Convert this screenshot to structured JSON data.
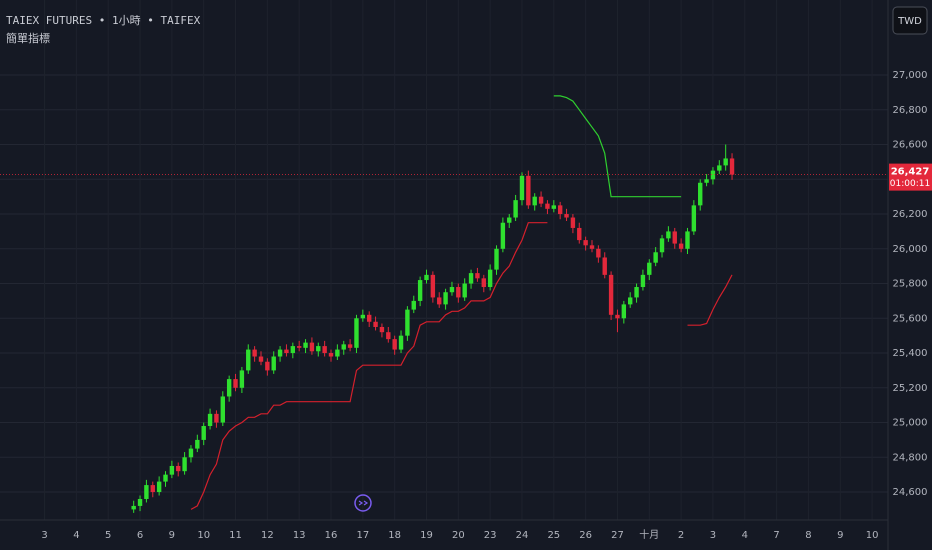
{
  "chart_data": {
    "type": "candlestick",
    "title": "TAIEX FUTURES • 1小時 • TAIFEX",
    "subtitle": "簡單指標",
    "currency": "TWD",
    "last_price": 26427,
    "last_label": "26,427",
    "countdown": "01:00:11",
    "up_color": "#2fe02f",
    "down_color": "#e3283b",
    "bg": "#151924",
    "grid": true,
    "open": [
      24500,
      24520,
      24560,
      24640,
      24600,
      24660,
      24700,
      24750,
      24720,
      24800,
      24850,
      24900,
      24980,
      25050,
      25000,
      25150,
      25250,
      25200,
      25300,
      25420,
      25380,
      25350,
      25300,
      25380,
      25420,
      25400,
      25440,
      25430,
      25460,
      25410,
      25440,
      25400,
      25380,
      25420,
      25450,
      25430,
      25600,
      25620,
      25580,
      25550,
      25520,
      25480,
      25420,
      25500,
      25650,
      25700,
      25820,
      25850,
      25720,
      25680,
      25750,
      25780,
      25720,
      25800,
      25860,
      25830,
      25780,
      25880,
      26000,
      26150,
      26180,
      26280,
      26420,
      26250,
      26300,
      26260,
      26230,
      26250,
      26200,
      26180,
      26120,
      26050,
      26020,
      26000,
      25950,
      25850,
      25620,
      25600,
      25680,
      25720,
      25780,
      25850,
      25920,
      25980,
      26060,
      26100,
      26030,
      26000,
      26100,
      26250,
      26380,
      26400,
      26450,
      26480,
      26520
    ],
    "high": [
      24550,
      24580,
      24670,
      24660,
      24690,
      24720,
      24780,
      24770,
      24830,
      24870,
      24930,
      25000,
      25080,
      25070,
      25180,
      25270,
      25280,
      25320,
      25450,
      25440,
      25410,
      25370,
      25410,
      25440,
      25450,
      25460,
      25470,
      25480,
      25490,
      25460,
      25470,
      25420,
      25450,
      25470,
      25480,
      25620,
      25650,
      25640,
      25610,
      25570,
      25550,
      25500,
      25530,
      25670,
      25730,
      25840,
      25880,
      25870,
      25750,
      25770,
      25810,
      25800,
      25830,
      25880,
      25890,
      25850,
      25910,
      26020,
      26180,
      26200,
      26310,
      26440,
      26450,
      26320,
      26330,
      26280,
      26280,
      26270,
      26230,
      26200,
      26150,
      26070,
      26050,
      26020,
      25980,
      25870,
      25650,
      25700,
      25750,
      25800,
      25880,
      25940,
      26010,
      26080,
      26130,
      26120,
      26060,
      26120,
      26280,
      26400,
      26430,
      26470,
      26510,
      26600,
      26550
    ],
    "low": [
      24480,
      24490,
      24540,
      24570,
      24580,
      24630,
      24680,
      24690,
      24700,
      24770,
      24830,
      24870,
      24960,
      24970,
      24980,
      25120,
      25180,
      25170,
      25280,
      25350,
      25330,
      25270,
      25280,
      25350,
      25380,
      25370,
      25410,
      25400,
      25390,
      25380,
      25380,
      25350,
      25360,
      25390,
      25410,
      25400,
      25580,
      25550,
      25530,
      25490,
      25460,
      25390,
      25400,
      25470,
      25630,
      25670,
      25800,
      25690,
      25660,
      25650,
      25730,
      25690,
      25700,
      25770,
      25810,
      25750,
      25760,
      25850,
      25980,
      26120,
      26160,
      26250,
      26230,
      26220,
      26240,
      26200,
      26210,
      26170,
      26160,
      26090,
      26030,
      25990,
      25980,
      25920,
      25830,
      25590,
      25520,
      25570,
      25660,
      25690,
      25760,
      25820,
      25900,
      25950,
      26040,
      26000,
      25980,
      25970,
      26080,
      26220,
      26360,
      26370,
      26430,
      26450,
      26397
    ],
    "close": [
      24520,
      24560,
      24640,
      24600,
      24660,
      24700,
      24750,
      24720,
      24800,
      24850,
      24900,
      24980,
      25050,
      25000,
      25150,
      25250,
      25200,
      25300,
      25420,
      25380,
      25350,
      25300,
      25380,
      25420,
      25400,
      25440,
      25430,
      25460,
      25410,
      25440,
      25400,
      25380,
      25420,
      25450,
      25430,
      25600,
      25620,
      25580,
      25550,
      25520,
      25480,
      25420,
      25500,
      25650,
      25700,
      25820,
      25850,
      25720,
      25680,
      25750,
      25780,
      25720,
      25800,
      25860,
      25830,
      25780,
      25880,
      26000,
      26150,
      26180,
      26280,
      26420,
      26250,
      26300,
      26260,
      26230,
      26250,
      26200,
      26180,
      26120,
      26050,
      26020,
      26000,
      25950,
      25850,
      25620,
      25600,
      25680,
      25720,
      25780,
      25850,
      25920,
      25980,
      26060,
      26100,
      26030,
      26000,
      26100,
      26250,
      26380,
      26400,
      26450,
      26480,
      26520,
      26427
    ],
    "lines": [
      {
        "color": "#d4202c",
        "values": [
          null,
          null,
          null,
          null,
          null,
          null,
          null,
          null,
          null,
          24500,
          24520,
          24600,
          24700,
          24760,
          24900,
          24950,
          24980,
          25000,
          25030,
          25030,
          25050,
          25050,
          25100,
          25100,
          25120,
          25120,
          25120,
          25120,
          25120,
          25120,
          25120,
          25120,
          25120,
          25120,
          25120,
          25300,
          25330,
          25330,
          25330,
          25330,
          25330,
          25330,
          25330,
          25400,
          25440,
          25560,
          25580,
          25580,
          25580,
          25620,
          25640,
          25640,
          25660,
          25700,
          25700,
          25700,
          25720,
          25800,
          25860,
          25900,
          25980,
          26050,
          26150,
          26150,
          26150,
          26150,
          null,
          null,
          null,
          null,
          null,
          null,
          null,
          null,
          null,
          null,
          null,
          null,
          null,
          null,
          null,
          null,
          null,
          null,
          null,
          null,
          null,
          25560,
          25560,
          25560,
          25570,
          25650,
          25720,
          25780,
          25850
        ]
      },
      {
        "color": "#2fcf2f",
        "values": [
          null,
          null,
          null,
          null,
          null,
          null,
          null,
          null,
          null,
          null,
          null,
          null,
          null,
          null,
          null,
          null,
          null,
          null,
          null,
          null,
          null,
          null,
          null,
          null,
          null,
          null,
          null,
          null,
          null,
          null,
          null,
          null,
          null,
          null,
          null,
          null,
          null,
          null,
          null,
          null,
          null,
          null,
          null,
          null,
          null,
          null,
          null,
          null,
          null,
          null,
          null,
          null,
          null,
          null,
          null,
          null,
          null,
          null,
          null,
          null,
          null,
          null,
          null,
          null,
          null,
          null,
          26880,
          26880,
          26870,
          26850,
          26800,
          26750,
          26700,
          26650,
          26550,
          26300,
          26300,
          26300,
          26300,
          26300,
          26300,
          26300,
          26300,
          26300,
          26300,
          26300,
          26300,
          null,
          null,
          null,
          null,
          null,
          null,
          null,
          null
        ]
      }
    ],
    "xlim": [
      -21,
      118.5
    ],
    "xticks": [
      {
        "value": -14,
        "label": "3"
      },
      {
        "value": -9,
        "label": "4"
      },
      {
        "value": -4,
        "label": "5"
      },
      {
        "value": 1,
        "label": "6"
      },
      {
        "value": 6,
        "label": "9"
      },
      {
        "value": 11,
        "label": "10"
      },
      {
        "value": 16,
        "label": "11"
      },
      {
        "value": 21,
        "label": "12"
      },
      {
        "value": 26,
        "label": "13"
      },
      {
        "value": 31,
        "label": "16"
      },
      {
        "value": 36,
        "label": "17"
      },
      {
        "value": 41,
        "label": "18"
      },
      {
        "value": 46,
        "label": "19"
      },
      {
        "value": 51,
        "label": "20"
      },
      {
        "value": 56,
        "label": "23"
      },
      {
        "value": 61,
        "label": "24"
      },
      {
        "value": 66,
        "label": "25"
      },
      {
        "value": 71,
        "label": "26"
      },
      {
        "value": 76,
        "label": "27"
      },
      {
        "value": 81,
        "label": "十月"
      },
      {
        "value": 86,
        "label": "2"
      },
      {
        "value": 91,
        "label": "3"
      },
      {
        "value": 96,
        "label": "4"
      },
      {
        "value": 101,
        "label": "7"
      },
      {
        "value": 106,
        "label": "8"
      },
      {
        "value": 111,
        "label": "9"
      },
      {
        "value": 116,
        "label": "10"
      }
    ],
    "ylim": [
      24439,
      27432
    ],
    "yticks": [
      {
        "value": 24600,
        "label": "24,600"
      },
      {
        "value": 24800,
        "label": "24,800"
      },
      {
        "value": 25000,
        "label": "25,000"
      },
      {
        "value": 25200,
        "label": "25,200"
      },
      {
        "value": 25400,
        "label": "25,400"
      },
      {
        "value": 25600,
        "label": "25,600"
      },
      {
        "value": 25800,
        "label": "25,800"
      },
      {
        "value": 26000,
        "label": "26,000"
      },
      {
        "value": 26200,
        "label": "26,200"
      },
      {
        "value": 26400,
        "label": "26,400"
      },
      {
        "value": 26600,
        "label": "26,600"
      },
      {
        "value": 26800,
        "label": "26,800"
      },
      {
        "value": 27000,
        "label": "27,000"
      }
    ]
  }
}
